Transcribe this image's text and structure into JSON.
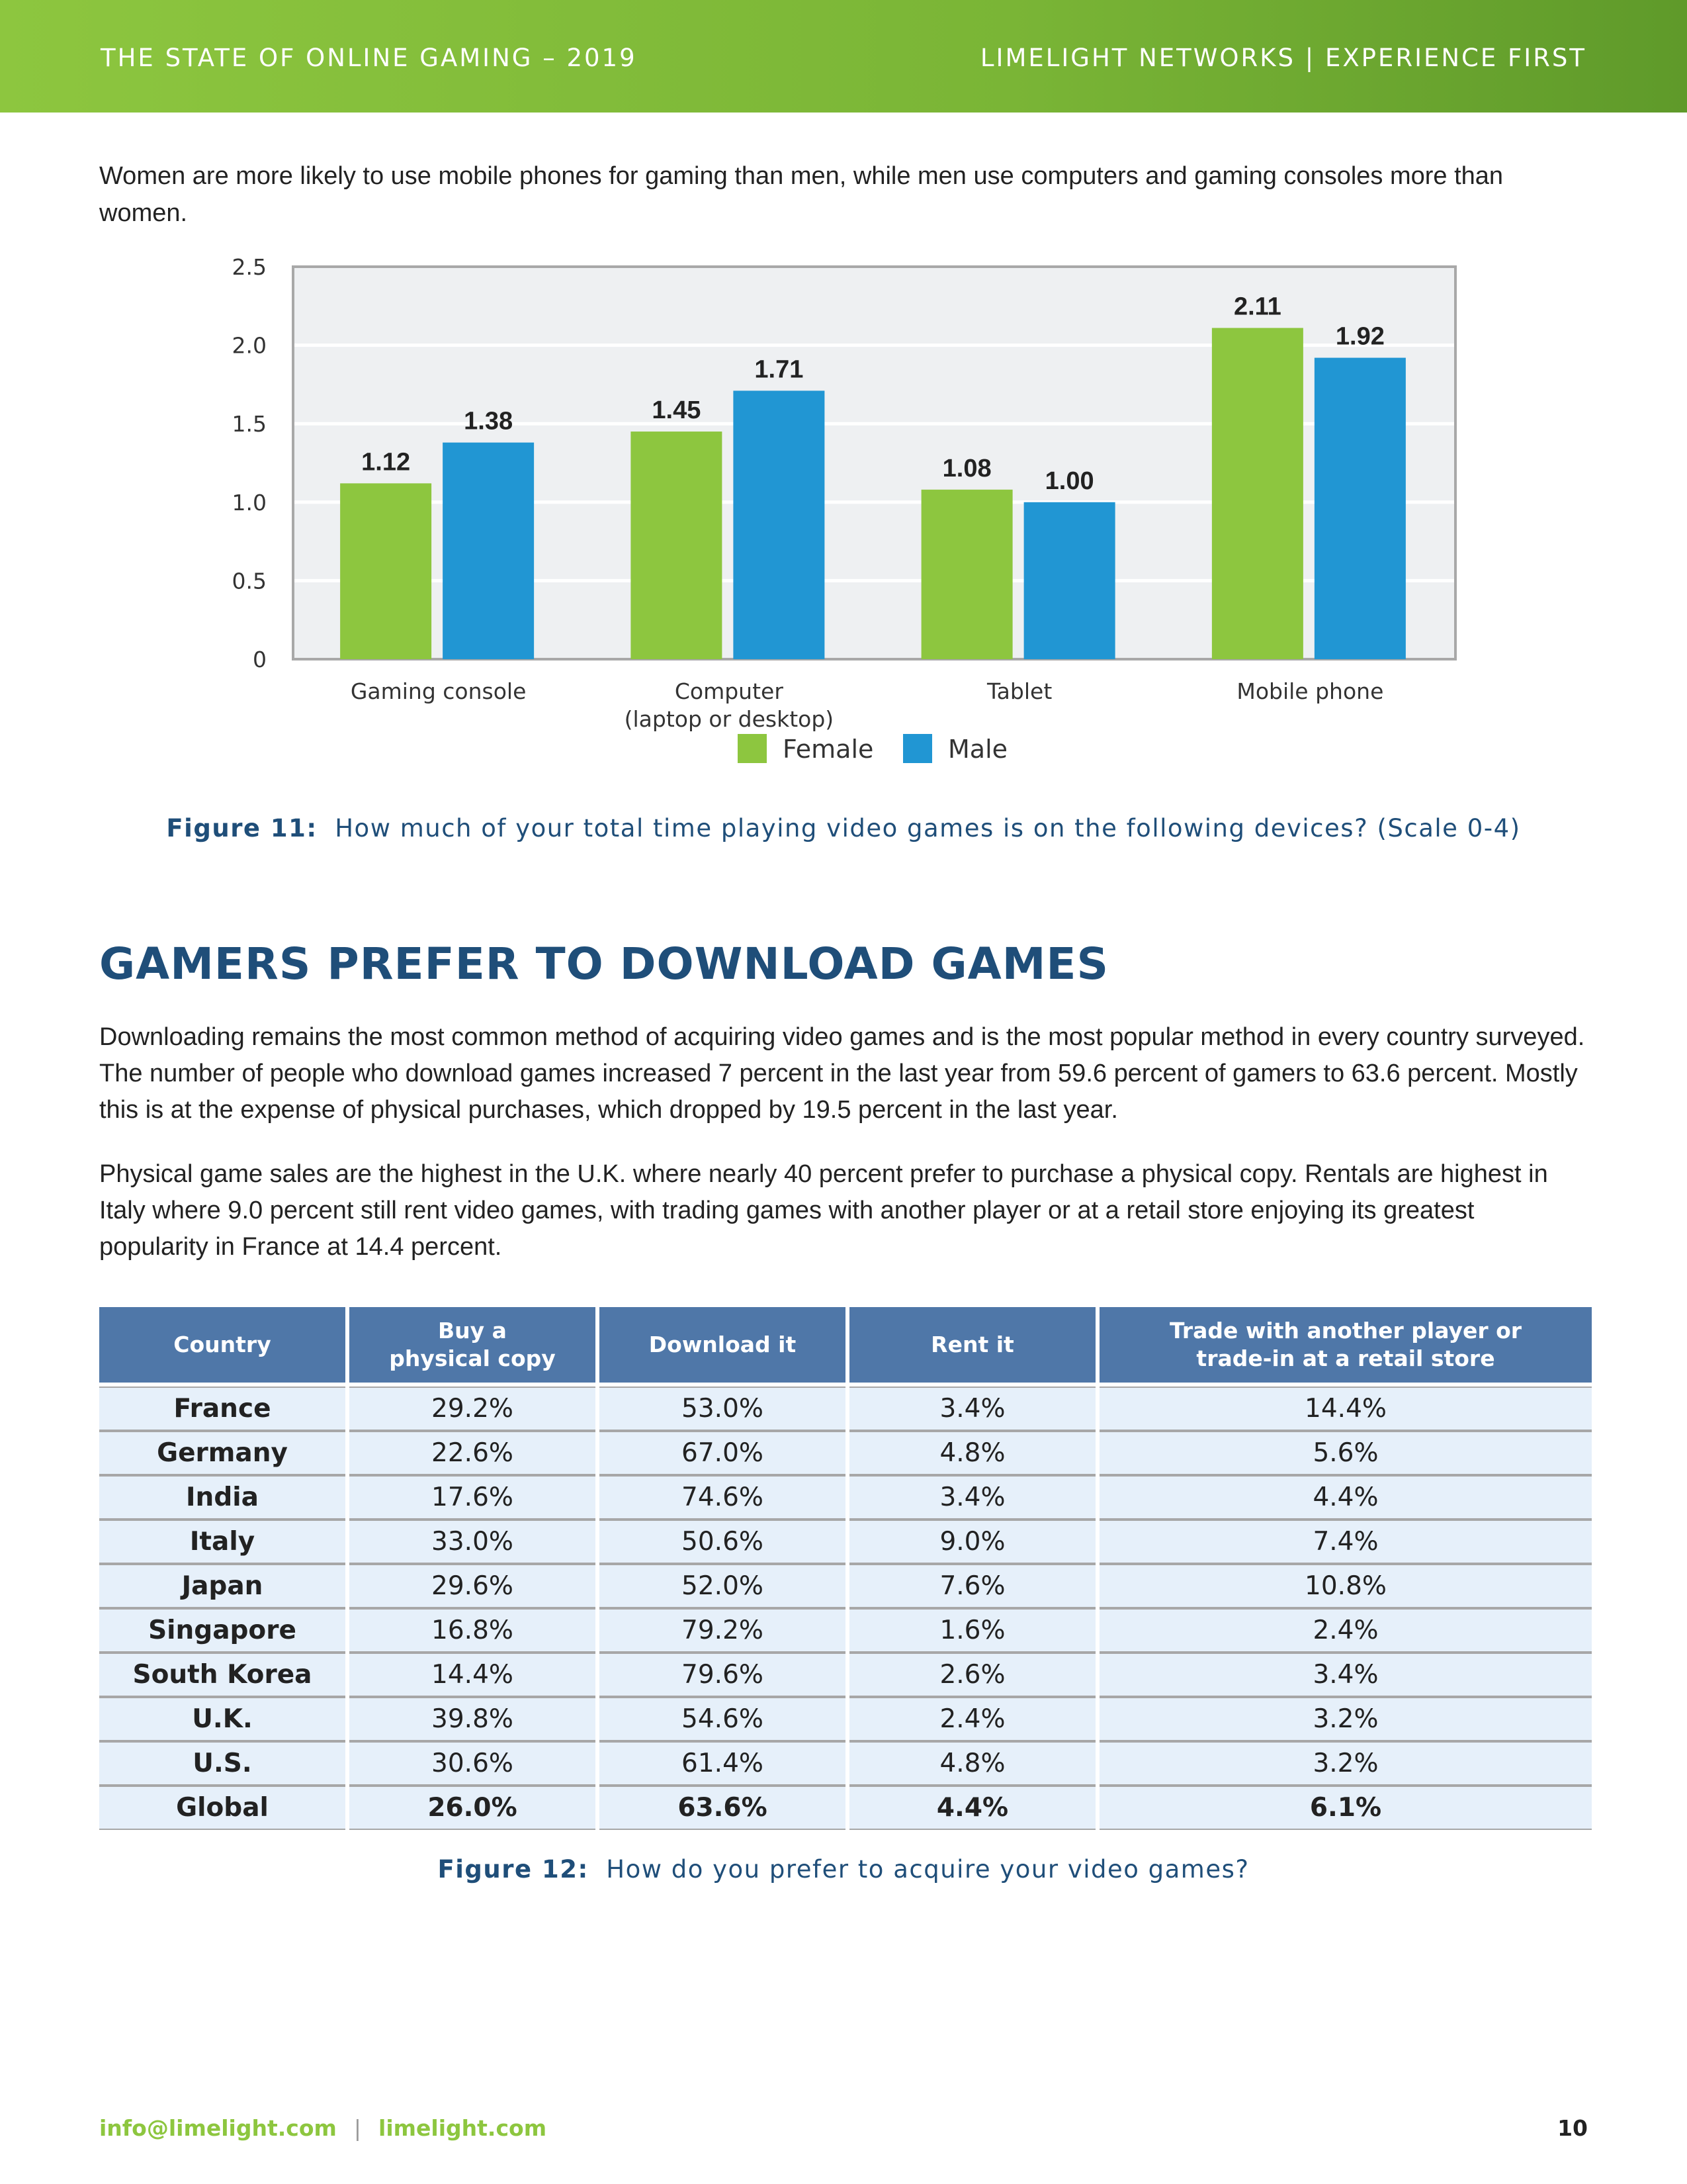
{
  "header": {
    "left": "THE STATE OF ONLINE GAMING – 2019",
    "right": "LIMELIGHT NETWORKS | EXPERIENCE FIRST"
  },
  "intro": "Women are more likely to use mobile phones for gaming than men, while men use computers and gaming consoles more than women.",
  "chart_data": {
    "type": "bar",
    "categories": [
      "Gaming console",
      "Computer\n(laptop or desktop)",
      "Tablet",
      "Mobile phone"
    ],
    "series": [
      {
        "name": "Female",
        "values": [
          1.12,
          1.45,
          1.08,
          2.11
        ],
        "color": "#8dc63f"
      },
      {
        "name": "Male",
        "values": [
          1.38,
          1.71,
          1.0,
          1.92
        ],
        "color": "#2196d3"
      }
    ],
    "data_labels": [
      [
        "1.12",
        "1.45",
        "1.08",
        "2.11"
      ],
      [
        "1.38",
        "1.71",
        "1.00",
        "1.92"
      ]
    ],
    "yticks": [
      "0",
      "0.5",
      "1.0",
      "1.5",
      "2.0",
      "2.5"
    ],
    "ylim": [
      0,
      2.5
    ],
    "grid": true,
    "legend": "bottom-center",
    "plot_bg": "#eef0f2"
  },
  "figure11": {
    "label": "Figure 11:",
    "text": "How much of your total time playing video games is on the following devices? (Scale 0-4)"
  },
  "section_title": "GAMERS PREFER TO DOWNLOAD GAMES",
  "para1": "Downloading remains the most common method of acquiring video games and is the most popular method in every country surveyed. The number of people who download games increased 7 percent in the last year from 59.6 percent of gamers to 63.6 percent. Mostly this is at the expense of physical purchases, which dropped by 19.5 percent in the last year.",
  "para2": "Physical game sales are the highest in the U.K. where nearly 40 percent prefer to purchase a physical copy. Rentals are highest in Italy where 9.0 percent still rent video games, with trading games with another player or at a retail store enjoying its greatest popularity in France at 14.4 percent.",
  "table": {
    "headers": [
      "Country",
      "Buy a\nphysical copy",
      "Download it",
      "Rent it",
      "Trade with another player or\ntrade-in at a retail store"
    ],
    "rows": [
      [
        "France",
        "29.2%",
        "53.0%",
        "3.4%",
        "14.4%"
      ],
      [
        "Germany",
        "22.6%",
        "67.0%",
        "4.8%",
        "5.6%"
      ],
      [
        "India",
        "17.6%",
        "74.6%",
        "3.4%",
        "4.4%"
      ],
      [
        "Italy",
        "33.0%",
        "50.6%",
        "9.0%",
        "7.4%"
      ],
      [
        "Japan",
        "29.6%",
        "52.0%",
        "7.6%",
        "10.8%"
      ],
      [
        "Singapore",
        "16.8%",
        "79.2%",
        "1.6%",
        "2.4%"
      ],
      [
        "South Korea",
        "14.4%",
        "79.6%",
        "2.6%",
        "3.4%"
      ],
      [
        "U.K.",
        "39.8%",
        "54.6%",
        "2.4%",
        "3.2%"
      ],
      [
        "U.S.",
        "30.6%",
        "61.4%",
        "4.8%",
        "3.2%"
      ],
      [
        "Global",
        "26.0%",
        "63.6%",
        "4.4%",
        "6.1%"
      ]
    ]
  },
  "figure12": {
    "label": "Figure 12:",
    "text": "How do you prefer to acquire your video games?"
  },
  "footer": {
    "email": "info@limelight.com",
    "separator": "|",
    "site": "limelight.com",
    "page": "10"
  }
}
